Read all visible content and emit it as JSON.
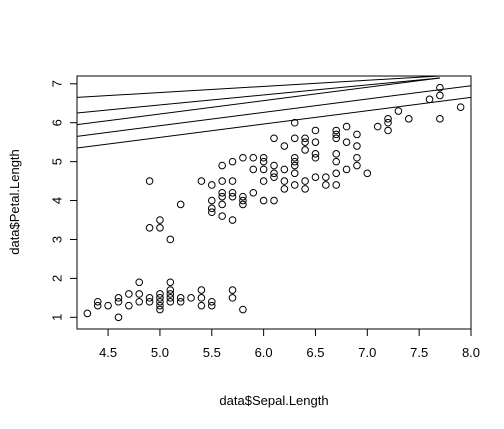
{
  "chart_data": {
    "type": "scatter",
    "title": "",
    "xlabel": "data$Sepal.Length",
    "ylabel": "data$Petal.Length",
    "xlim": [
      4.2,
      8.0
    ],
    "ylim": [
      0.7,
      7.2
    ],
    "x_ticks": [
      4.5,
      5.0,
      5.5,
      6.0,
      6.5,
      7.0,
      7.5,
      8.0
    ],
    "x_tick_labels": [
      "4.5",
      "5.0",
      "5.5",
      "6.0",
      "6.5",
      "7.0",
      "7.5",
      "8.0"
    ],
    "y_ticks": [
      1,
      2,
      3,
      4,
      5,
      6,
      7
    ],
    "y_tick_labels": [
      "1",
      "2",
      "3",
      "4",
      "5",
      "6",
      "7"
    ],
    "grid": false,
    "legend": "none",
    "marker": "open-circle",
    "points": [
      [
        4.3,
        1.1
      ],
      [
        4.4,
        1.3
      ],
      [
        4.4,
        1.4
      ],
      [
        4.5,
        1.3
      ],
      [
        4.6,
        1.0
      ],
      [
        4.6,
        1.4
      ],
      [
        4.6,
        1.5
      ],
      [
        4.7,
        1.3
      ],
      [
        4.7,
        1.6
      ],
      [
        4.8,
        1.4
      ],
      [
        4.8,
        1.6
      ],
      [
        4.8,
        1.9
      ],
      [
        4.9,
        1.4
      ],
      [
        4.9,
        1.5
      ],
      [
        5.0,
        1.2
      ],
      [
        5.0,
        1.3
      ],
      [
        5.0,
        1.4
      ],
      [
        5.0,
        1.5
      ],
      [
        5.0,
        1.6
      ],
      [
        5.1,
        1.4
      ],
      [
        5.1,
        1.5
      ],
      [
        5.1,
        1.6
      ],
      [
        5.1,
        1.7
      ],
      [
        5.1,
        1.9
      ],
      [
        5.2,
        1.4
      ],
      [
        5.2,
        1.5
      ],
      [
        5.3,
        1.5
      ],
      [
        5.4,
        1.3
      ],
      [
        5.4,
        1.5
      ],
      [
        5.4,
        1.7
      ],
      [
        5.5,
        1.3
      ],
      [
        5.5,
        1.4
      ],
      [
        5.7,
        1.5
      ],
      [
        5.7,
        1.7
      ],
      [
        5.8,
        1.2
      ],
      [
        4.9,
        4.5
      ],
      [
        4.9,
        3.3
      ],
      [
        5.0,
        3.3
      ],
      [
        5.0,
        3.5
      ],
      [
        5.1,
        3.0
      ],
      [
        5.2,
        3.9
      ],
      [
        5.4,
        4.5
      ],
      [
        5.5,
        3.7
      ],
      [
        5.5,
        3.8
      ],
      [
        5.5,
        4.0
      ],
      [
        5.5,
        4.4
      ],
      [
        5.6,
        3.6
      ],
      [
        5.6,
        3.9
      ],
      [
        5.6,
        4.1
      ],
      [
        5.6,
        4.2
      ],
      [
        5.6,
        4.5
      ],
      [
        5.6,
        4.9
      ],
      [
        5.7,
        3.5
      ],
      [
        5.7,
        4.1
      ],
      [
        5.7,
        4.2
      ],
      [
        5.7,
        4.5
      ],
      [
        5.7,
        5.0
      ],
      [
        5.8,
        3.9
      ],
      [
        5.8,
        4.0
      ],
      [
        5.8,
        4.1
      ],
      [
        5.8,
        5.1
      ],
      [
        5.9,
        4.2
      ],
      [
        5.9,
        4.8
      ],
      [
        5.9,
        5.1
      ],
      [
        6.0,
        4.0
      ],
      [
        6.0,
        4.5
      ],
      [
        6.0,
        4.8
      ],
      [
        6.0,
        5.0
      ],
      [
        6.0,
        5.1
      ],
      [
        6.1,
        4.0
      ],
      [
        6.1,
        4.6
      ],
      [
        6.1,
        4.7
      ],
      [
        6.1,
        4.9
      ],
      [
        6.1,
        5.6
      ],
      [
        6.2,
        4.3
      ],
      [
        6.2,
        4.5
      ],
      [
        6.2,
        4.8
      ],
      [
        6.2,
        5.4
      ],
      [
        6.3,
        4.4
      ],
      [
        6.3,
        4.7
      ],
      [
        6.3,
        4.9
      ],
      [
        6.3,
        5.0
      ],
      [
        6.3,
        5.1
      ],
      [
        6.3,
        5.6
      ],
      [
        6.3,
        6.0
      ],
      [
        6.4,
        4.3
      ],
      [
        6.4,
        4.5
      ],
      [
        6.4,
        5.3
      ],
      [
        6.4,
        5.5
      ],
      [
        6.4,
        5.6
      ],
      [
        6.5,
        4.6
      ],
      [
        6.5,
        5.1
      ],
      [
        6.5,
        5.2
      ],
      [
        6.5,
        5.5
      ],
      [
        6.5,
        5.8
      ],
      [
        6.6,
        4.4
      ],
      [
        6.6,
        4.6
      ],
      [
        6.7,
        4.4
      ],
      [
        6.7,
        4.7
      ],
      [
        6.7,
        5.0
      ],
      [
        6.7,
        5.2
      ],
      [
        6.7,
        5.6
      ],
      [
        6.7,
        5.7
      ],
      [
        6.7,
        5.8
      ],
      [
        6.8,
        4.8
      ],
      [
        6.8,
        5.5
      ],
      [
        6.8,
        5.9
      ],
      [
        6.9,
        4.9
      ],
      [
        6.9,
        5.1
      ],
      [
        6.9,
        5.4
      ],
      [
        6.9,
        5.7
      ],
      [
        7.0,
        4.7
      ],
      [
        7.1,
        5.9
      ],
      [
        7.2,
        5.8
      ],
      [
        7.2,
        6.0
      ],
      [
        7.2,
        6.1
      ],
      [
        7.3,
        6.3
      ],
      [
        7.4,
        6.1
      ],
      [
        7.6,
        6.6
      ],
      [
        7.7,
        6.1
      ],
      [
        7.7,
        6.7
      ],
      [
        7.7,
        6.9
      ],
      [
        7.9,
        6.4
      ]
    ],
    "lines": [
      {
        "x": [
          4.2,
          7.7
        ],
        "y": [
          6.65,
          7.2
        ]
      },
      {
        "x": [
          4.2,
          7.7
        ],
        "y": [
          6.25,
          7.15
        ]
      },
      {
        "x": [
          4.2,
          7.7
        ],
        "y": [
          5.95,
          7.15
        ]
      },
      {
        "x": [
          4.2,
          8.0
        ],
        "y": [
          5.65,
          6.95
        ]
      },
      {
        "x": [
          4.2,
          8.0
        ],
        "y": [
          5.35,
          6.65
        ]
      }
    ]
  }
}
